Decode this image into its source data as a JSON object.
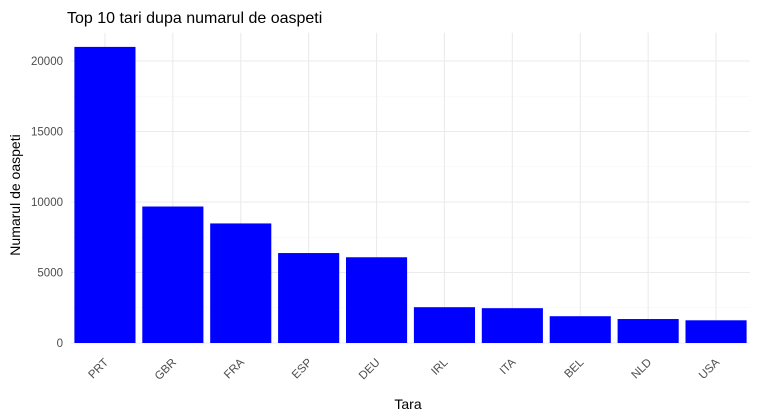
{
  "chart_data": {
    "type": "bar",
    "title": "Top 10 tari dupa numarul de oaspeti",
    "xlabel": "Tara",
    "ylabel": "Numarul de oaspeti",
    "categories": [
      "PRT",
      "GBR",
      "FRA",
      "ESP",
      "DEU",
      "IRL",
      "ITA",
      "BEL",
      "NLD",
      "USA"
    ],
    "values": [
      21000,
      9680,
      8480,
      6380,
      6080,
      2540,
      2470,
      1900,
      1700,
      1610
    ],
    "ylim": [
      0,
      22000
    ],
    "yticks": [
      0,
      5000,
      10000,
      15000,
      20000
    ],
    "ytick_labels": [
      "0",
      "5000",
      "10000",
      "15000",
      "20000"
    ],
    "grid": true,
    "legend": "none",
    "bar_color": "#0000ff"
  }
}
